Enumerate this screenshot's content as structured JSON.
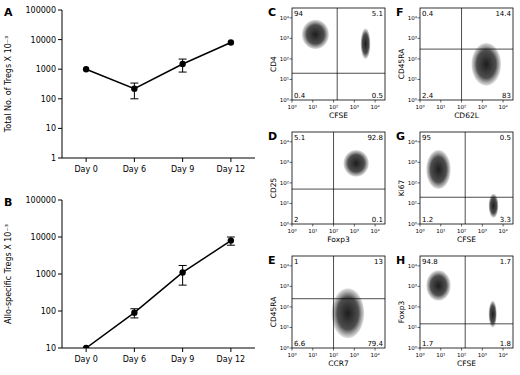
{
  "chart_data": [
    {
      "type": "line",
      "panel": "A",
      "y_label": "Total No. of Tregs X 10⁻³",
      "categories": [
        "Day 0",
        "Day 6",
        "Day 9",
        "Day 12"
      ],
      "values": [
        1000,
        220,
        1500,
        8000
      ],
      "errors": [
        null,
        120,
        700,
        null
      ],
      "log": "y",
      "ylim": [
        1,
        100000
      ],
      "yticks": [
        1,
        10,
        100,
        1000,
        10000,
        100000
      ],
      "color": "#000000",
      "marker": "circle"
    },
    {
      "type": "line",
      "panel": "B",
      "y_label": "Allo-specific Tregs X 10⁻³",
      "categories": [
        "Day 0",
        "Day 6",
        "Day 9",
        "Day 12"
      ],
      "values": [
        10,
        90,
        1100,
        8000
      ],
      "errors": [
        null,
        25,
        600,
        2000
      ],
      "log": "y",
      "ylim": [
        10,
        100000
      ],
      "yticks": [
        10,
        100,
        1000,
        10000,
        100000
      ],
      "color": "#000000",
      "marker": "circle"
    },
    {
      "type": "flow",
      "panel": "C",
      "x_label": "CFSE",
      "y_label": "CD4",
      "log": true,
      "xlim": [
        1,
        30000
      ],
      "ylim": [
        1,
        30000
      ],
      "xticks": [
        {
          "value": 1,
          "label": "10⁰"
        },
        {
          "value": 10,
          "label": "10¹"
        },
        {
          "value": 100,
          "label": "10²"
        },
        {
          "value": 1000,
          "label": "10³"
        },
        {
          "value": 10000,
          "label": "10⁴"
        }
      ],
      "yticks": [
        {
          "value": 1,
          "label": "10⁰"
        },
        {
          "value": 10,
          "label": "10¹"
        },
        {
          "value": 100,
          "label": "10²"
        },
        {
          "value": 1000,
          "label": "10³"
        },
        {
          "value": 10000,
          "label": "10⁴"
        }
      ],
      "gate": [
        150,
        20
      ],
      "quadrants": [
        94,
        5.1,
        0.4,
        0.5
      ],
      "populations": [
        {
          "x": [
            3,
            60
          ],
          "y": [
            300,
            8000
          ]
        },
        {
          "x": [
            2000,
            6000
          ],
          "y": [
            100,
            3000
          ]
        }
      ]
    },
    {
      "type": "flow",
      "panel": "D",
      "x_label": "Foxp3",
      "y_label": "CD25",
      "log": true,
      "xlim": [
        1,
        30000
      ],
      "ylim": [
        1,
        30000
      ],
      "xticks": [
        {
          "value": 1,
          "label": "10⁰"
        },
        {
          "value": 10,
          "label": "10¹"
        },
        {
          "value": 100,
          "label": "10²"
        },
        {
          "value": 1000,
          "label": "10³"
        },
        {
          "value": 10000,
          "label": "10⁴"
        }
      ],
      "yticks": [
        {
          "value": 1,
          "label": "10⁰"
        },
        {
          "value": 10,
          "label": "10¹"
        },
        {
          "value": 100,
          "label": "10²"
        },
        {
          "value": 1000,
          "label": "10³"
        },
        {
          "value": 10000,
          "label": "10⁴"
        }
      ],
      "gate": [
        100,
        50
      ],
      "quadrants": [
        5.1,
        92.8,
        2,
        0.1
      ],
      "populations": [
        {
          "x": [
            300,
            5000
          ],
          "y": [
            200,
            4000
          ]
        }
      ]
    },
    {
      "type": "flow",
      "panel": "E",
      "x_label": "CCR7",
      "y_label": "CD45RA",
      "log": true,
      "xlim": [
        1,
        30000
      ],
      "ylim": [
        1,
        30000
      ],
      "xticks": [
        {
          "value": 1,
          "label": "10⁰"
        },
        {
          "value": 10,
          "label": "10¹"
        },
        {
          "value": 100,
          "label": "10²"
        },
        {
          "value": 1000,
          "label": "10³"
        },
        {
          "value": 10000,
          "label": "10⁴"
        }
      ],
      "yticks": [
        {
          "value": 1,
          "label": "10⁰"
        },
        {
          "value": 10,
          "label": "10¹"
        },
        {
          "value": 100,
          "label": "10²"
        },
        {
          "value": 1000,
          "label": "10³"
        },
        {
          "value": 10000,
          "label": "10⁴"
        }
      ],
      "gate": [
        100,
        250
      ],
      "quadrants": [
        1,
        13,
        6.6,
        79.4
      ],
      "populations": [
        {
          "x": [
            80,
            3000
          ],
          "y": [
            3,
            800
          ]
        }
      ]
    },
    {
      "type": "flow",
      "panel": "F",
      "x_label": "CD62L",
      "y_label": "CD45RA",
      "log": true,
      "xlim": [
        1,
        30000
      ],
      "ylim": [
        1,
        30000
      ],
      "xticks": [
        {
          "value": 1,
          "label": "10⁰"
        },
        {
          "value": 10,
          "label": "10¹"
        },
        {
          "value": 100,
          "label": "10²"
        },
        {
          "value": 1000,
          "label": "10³"
        },
        {
          "value": 10000,
          "label": "10⁴"
        }
      ],
      "yticks": [
        {
          "value": 1,
          "label": "10⁰"
        },
        {
          "value": 10,
          "label": "10¹"
        },
        {
          "value": 100,
          "label": "10²"
        },
        {
          "value": 1000,
          "label": "10³"
        },
        {
          "value": 10000,
          "label": "10⁴"
        }
      ],
      "gate": [
        100,
        300
      ],
      "quadrants": [
        0.4,
        14.4,
        2.4,
        83
      ],
      "populations": [
        {
          "x": [
            300,
            8000
          ],
          "y": [
            5,
            600
          ]
        }
      ]
    },
    {
      "type": "flow",
      "panel": "G",
      "x_label": "CFSE",
      "y_label": "Ki67",
      "log": true,
      "xlim": [
        1,
        30000
      ],
      "ylim": [
        1,
        30000
      ],
      "xticks": [
        {
          "value": 1,
          "label": "10⁰"
        },
        {
          "value": 10,
          "label": "10¹"
        },
        {
          "value": 100,
          "label": "10²"
        },
        {
          "value": 1000,
          "label": "10³"
        },
        {
          "value": 10000,
          "label": "10⁴"
        }
      ],
      "yticks": [
        {
          "value": 1,
          "label": "10⁰"
        },
        {
          "value": 10,
          "label": "10¹"
        },
        {
          "value": 100,
          "label": "10²"
        },
        {
          "value": 1000,
          "label": "10³"
        },
        {
          "value": 10000,
          "label": "10⁴"
        }
      ],
      "gate": [
        150,
        20
      ],
      "quadrants": [
        95,
        0.5,
        1.2,
        3.3
      ],
      "populations": [
        {
          "x": [
            2,
            30
          ],
          "y": [
            50,
            4000
          ]
        },
        {
          "x": [
            2000,
            6000
          ],
          "y": [
            2,
            30
          ]
        }
      ]
    },
    {
      "type": "flow",
      "panel": "H",
      "x_label": "CFSE",
      "y_label": "Foxp3",
      "log": true,
      "xlim": [
        1,
        30000
      ],
      "ylim": [
        1,
        30000
      ],
      "xticks": [
        {
          "value": 1,
          "label": "10⁰"
        },
        {
          "value": 10,
          "label": "10¹"
        },
        {
          "value": 100,
          "label": "10²"
        },
        {
          "value": 1000,
          "label": "10³"
        },
        {
          "value": 10000,
          "label": "10⁴"
        }
      ],
      "yticks": [
        {
          "value": 1,
          "label": "10⁰"
        },
        {
          "value": 10,
          "label": "10¹"
        },
        {
          "value": 100,
          "label": "10²"
        },
        {
          "value": 1000,
          "label": "10³"
        },
        {
          "value": 10000,
          "label": "10⁴"
        }
      ],
      "gate": [
        150,
        15
      ],
      "quadrants": [
        94.8,
        1.7,
        1.7,
        1.8
      ],
      "populations": [
        {
          "x": [
            2,
            30
          ],
          "y": [
            200,
            6000
          ]
        },
        {
          "x": [
            2000,
            5000
          ],
          "y": [
            10,
            200
          ]
        }
      ]
    }
  ]
}
